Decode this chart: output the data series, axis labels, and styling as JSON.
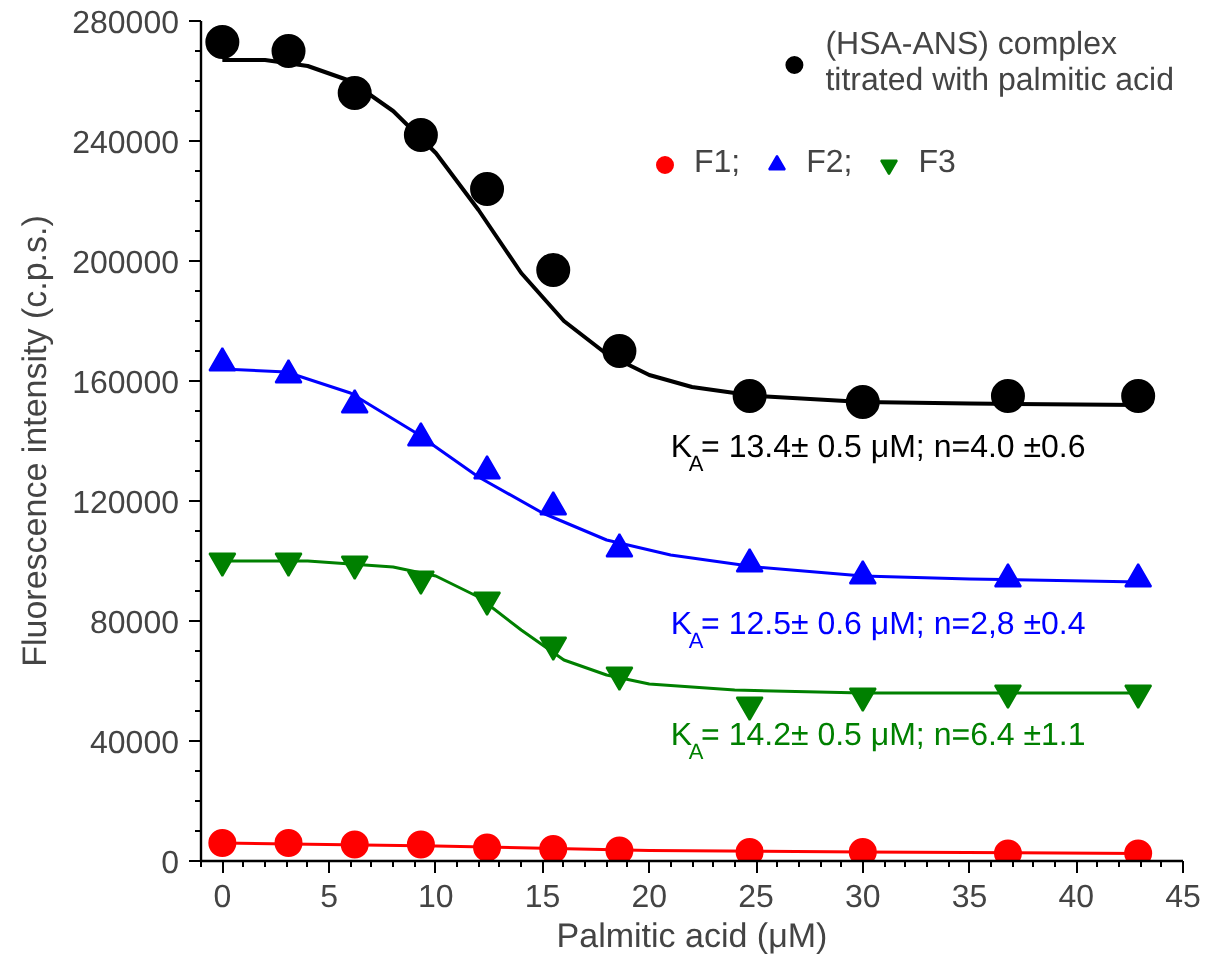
{
  "chart_data": {
    "type": "scatter",
    "xlabel": "Palmitic acid (μM)",
    "ylabel": "Fluorescence intensity (c.p.s.)",
    "xlim": [
      -1,
      45
    ],
    "ylim": [
      0,
      280000
    ],
    "xticks": [
      0,
      5,
      10,
      15,
      20,
      25,
      30,
      35,
      40,
      45
    ],
    "yticks": [
      0,
      40000,
      80000,
      120000,
      160000,
      200000,
      240000,
      280000
    ],
    "grid": false,
    "legend": "top right",
    "x": [
      0,
      3.1,
      6.2,
      9.3,
      12.4,
      15.5,
      18.6,
      24.7,
      30,
      36.8,
      42.9
    ],
    "series": [
      {
        "name": "(HSA-ANS) complex\ntitrated with palmitic acid",
        "color": "#000000",
        "marker": "circle",
        "values": [
          273000,
          270000,
          256000,
          242000,
          224000,
          197000,
          170000,
          155000,
          153000,
          155000,
          155000
        ]
      },
      {
        "name": "F1;",
        "color": "#ff0000",
        "marker": "circle",
        "values": [
          6000,
          6000,
          5500,
          5500,
          4500,
          4000,
          3500,
          3000,
          3000,
          2500,
          2500
        ]
      },
      {
        "name": "F2;",
        "color": "#0000ff",
        "marker": "triangle",
        "values": [
          166000,
          162000,
          152000,
          141000,
          130000,
          118000,
          104000,
          99000,
          95000,
          94000,
          94000
        ]
      },
      {
        "name": "F3",
        "color": "#008000",
        "marker": "triangle_down",
        "values": [
          100000,
          100000,
          99000,
          94000,
          87000,
          72000,
          62000,
          52000,
          55000,
          56000,
          56000
        ]
      },
      {
        "type": "line",
        "color": "#000000",
        "x": [
          0,
          2,
          4,
          6,
          8,
          10,
          12,
          14,
          16,
          18,
          20,
          22,
          25,
          30,
          35,
          43
        ],
        "values": [
          267000,
          267000,
          265000,
          260000,
          250000,
          236000,
          217000,
          196000,
          180000,
          169000,
          162000,
          158000,
          155000,
          153000,
          152500,
          152000
        ]
      },
      {
        "type": "line",
        "color": "#0000ff",
        "x": [
          0,
          3,
          6,
          9,
          12,
          15,
          18,
          21,
          25,
          30,
          35,
          43
        ],
        "values": [
          164000,
          163000,
          156000,
          143000,
          128000,
          116000,
          107000,
          102000,
          98000,
          95000,
          94000,
          93000
        ]
      },
      {
        "type": "line",
        "color": "#008000",
        "x": [
          0,
          4,
          8,
          10,
          12,
          14,
          16,
          18,
          20,
          24,
          30,
          43
        ],
        "values": [
          100000,
          100000,
          98000,
          95000,
          88000,
          77000,
          67000,
          62000,
          59000,
          57000,
          56000,
          56000
        ]
      },
      {
        "type": "line",
        "color": "#ff0000",
        "x": [
          0,
          10,
          20,
          30,
          43
        ],
        "values": [
          6000,
          5000,
          3500,
          3000,
          2500
        ]
      }
    ],
    "annotations": [
      "K$_{A}$= 13.4± 0.5 μM; n=4.0 ±0.6",
      "K$_{A}$= 12.5± 0.6 μM; n=2,8 ±0.4",
      "K$_{A}$= 14.2± 0.5 μM; n=6.4 ±1.1"
    ]
  }
}
